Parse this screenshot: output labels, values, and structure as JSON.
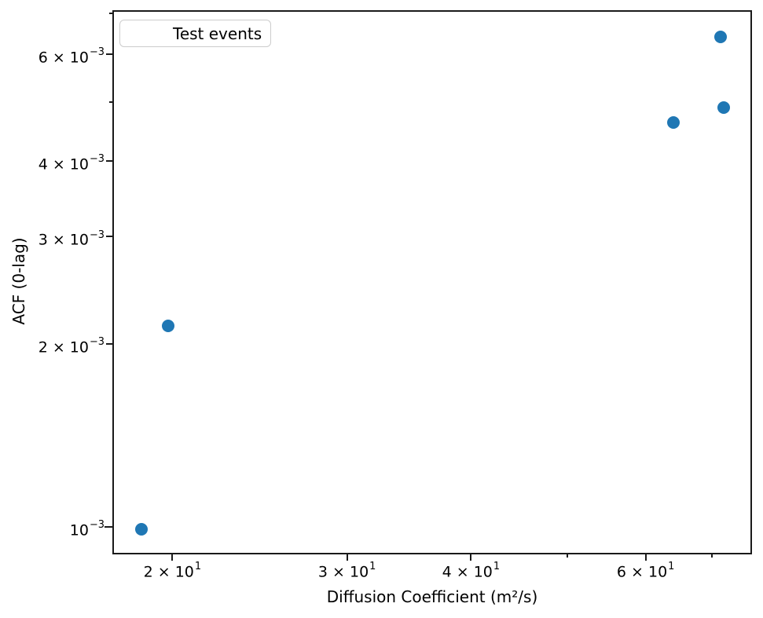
{
  "legend": {
    "label": "Test events",
    "marker_color": "#1f77b4"
  },
  "chart_data": {
    "type": "scatter",
    "title": "",
    "xlabel": "Diffusion Coefficient (m²/s)",
    "ylabel": "ACF (0-lag)",
    "xscale": "log",
    "yscale": "log",
    "xlim": [
      17.4,
      76.8
    ],
    "ylim": [
      0.0009,
      0.00708
    ],
    "grid": false,
    "legend_position": "upper left",
    "series": [
      {
        "name": "Test events",
        "color": "#1f77b4",
        "marker": "circle",
        "points": [
          [
            18.6,
            0.00099
          ],
          [
            19.8,
            0.00214
          ],
          [
            64.0,
            0.00462
          ],
          [
            71.9,
            0.0049
          ],
          [
            71.4,
            0.0064
          ]
        ]
      }
    ],
    "x_ticks": [
      {
        "value": 20,
        "base": "2 × 10",
        "exp": "1",
        "labeled": true
      },
      {
        "value": 30,
        "base": "3 × 10",
        "exp": "1",
        "labeled": true
      },
      {
        "value": 40,
        "base": "4 × 10",
        "exp": "1",
        "labeled": true
      },
      {
        "value": 50,
        "labeled": false
      },
      {
        "value": 60,
        "base": "6 × 10",
        "exp": "1",
        "labeled": true
      },
      {
        "value": 70,
        "labeled": false
      }
    ],
    "y_ticks": [
      {
        "value": 0.001,
        "base": "10",
        "exp": "−3",
        "labeled": true,
        "major": true
      },
      {
        "value": 0.002,
        "base": "2 × 10",
        "exp": "−3",
        "labeled": true
      },
      {
        "value": 0.003,
        "base": "3 × 10",
        "exp": "−3",
        "labeled": true
      },
      {
        "value": 0.004,
        "base": "4 × 10",
        "exp": "−3",
        "labeled": true
      },
      {
        "value": 0.005,
        "labeled": false
      },
      {
        "value": 0.006,
        "base": "6 × 10",
        "exp": "−3",
        "labeled": true
      },
      {
        "value": 0.007,
        "labeled": false
      }
    ]
  }
}
